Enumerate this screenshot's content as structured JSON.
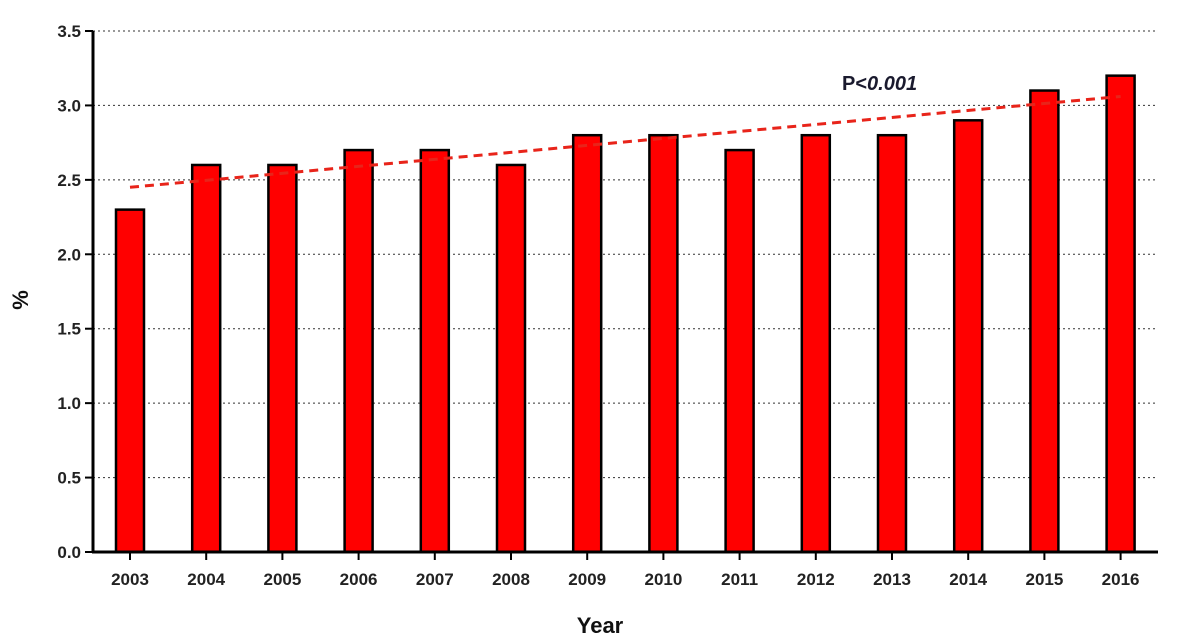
{
  "chart_data": {
    "type": "bar",
    "categories": [
      "2003",
      "2004",
      "2005",
      "2006",
      "2007",
      "2008",
      "2009",
      "2010",
      "2011",
      "2012",
      "2013",
      "2014",
      "2015",
      "2016"
    ],
    "values": [
      2.3,
      2.6,
      2.6,
      2.7,
      2.7,
      2.6,
      2.8,
      2.8,
      2.7,
      2.8,
      2.8,
      2.9,
      3.1,
      3.2
    ],
    "xlabel": "Year",
    "ylabel": "%",
    "ylim": [
      0,
      3.5
    ],
    "yticks": [
      "0.0",
      "0.5",
      "1.0",
      "1.5",
      "2.0",
      "2.5",
      "3.0",
      "3.5"
    ],
    "grid": "horizontal dotted",
    "bar_color": "#ff0000",
    "trendline": {
      "style": "dashed",
      "color": "#e8241a",
      "start": 2.45,
      "end": 3.06
    },
    "annotation": {
      "prefix": "P<",
      "value": "0.001"
    }
  }
}
